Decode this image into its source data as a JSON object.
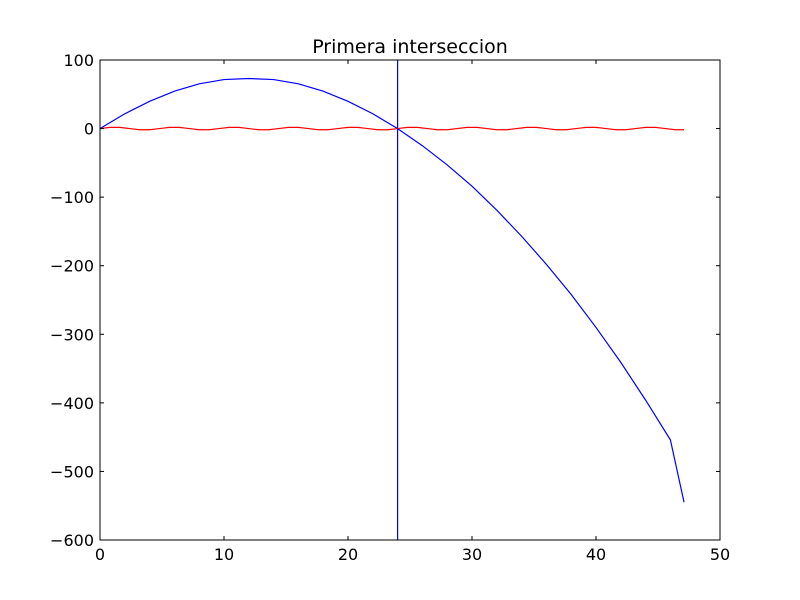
{
  "chart_data": {
    "type": "line",
    "title": "Primera interseccion",
    "xlabel": "",
    "ylabel": "",
    "xlim": [
      0,
      50
    ],
    "ylim": [
      -600,
      100
    ],
    "xticks": [
      0,
      10,
      20,
      30,
      40,
      50
    ],
    "yticks": [
      100,
      0,
      -100,
      -200,
      -300,
      -400,
      -500,
      -600
    ],
    "xtick_labels": [
      "0",
      "10",
      "20",
      "30",
      "40",
      "50"
    ],
    "ytick_labels": [
      "100",
      "0",
      "−100",
      "−200",
      "−300",
      "−400",
      "−500",
      "−600"
    ],
    "grid": false,
    "legend": "none",
    "series": [
      {
        "color": "#0000ff",
        "x": [
          0,
          2,
          4,
          6,
          8,
          10,
          12,
          14,
          16,
          18,
          20,
          22,
          24,
          26,
          28,
          30,
          32,
          34,
          36,
          38,
          40,
          42,
          44,
          46,
          47.1
        ],
        "y": [
          0,
          21.6,
          39.8,
          54.5,
          65.3,
          71.5,
          73,
          71.5,
          65.3,
          54.5,
          39.8,
          21.6,
          0,
          -25,
          -53,
          -84,
          -119,
          -157,
          -198,
          -242,
          -290,
          -341,
          -396,
          -454,
          -545
        ]
      },
      {
        "color": "#ff0000",
        "x": [
          0,
          0.8,
          1.6,
          2.4,
          3.2,
          4,
          4.8,
          5.6,
          6.4,
          7.2,
          8,
          8.8,
          9.6,
          10.4,
          11.2,
          12,
          12.8,
          13.6,
          14.4,
          15.2,
          16,
          16.8,
          17.6,
          18.4,
          19.2,
          20,
          20.8,
          21.6,
          22.4,
          23.2,
          24,
          24.8,
          25.6,
          26.4,
          27.2,
          28,
          28.8,
          29.6,
          30.4,
          31.2,
          32,
          32.8,
          33.6,
          34.4,
          35.2,
          36,
          36.8,
          37.6,
          38.4,
          39.2,
          40,
          40.8,
          41.6,
          42.4,
          43.2,
          44,
          44.8,
          45.6,
          46.4,
          47.1
        ],
        "y": [
          0,
          1.7,
          1.7,
          0,
          -1.7,
          -1.7,
          0,
          1.7,
          1.7,
          0,
          -1.7,
          -1.7,
          0,
          1.7,
          1.7,
          0,
          -1.7,
          -1.7,
          0,
          1.7,
          1.7,
          0,
          -1.7,
          -1.7,
          0,
          1.7,
          1.7,
          0,
          -1.7,
          -1.7,
          0,
          1.7,
          1.7,
          0,
          -1.7,
          -1.7,
          0,
          1.7,
          1.7,
          0,
          -1.7,
          -1.7,
          0,
          1.7,
          1.7,
          0,
          -1.7,
          -1.7,
          0,
          1.7,
          1.7,
          0,
          -1.7,
          -1.7,
          0,
          1.7,
          1.7,
          0,
          -1.7,
          -1.7
        ]
      }
    ],
    "vlines": [
      {
        "x": 24,
        "color": "#0000ff"
      }
    ]
  }
}
